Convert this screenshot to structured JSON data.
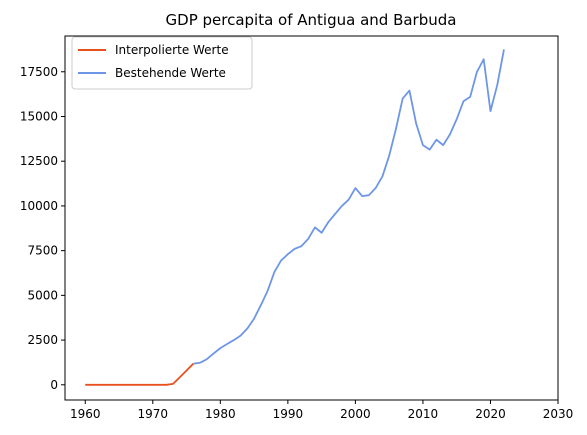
{
  "chart_data": {
    "type": "line",
    "title": "GDP percapita of Antigua and Barbuda",
    "xlabel": "",
    "ylabel": "",
    "xlim": [
      1957,
      2030
    ],
    "ylim": [
      -850,
      19500
    ],
    "xticks": [
      1960,
      1970,
      1980,
      1990,
      2000,
      2010,
      2020,
      2030
    ],
    "yticks": [
      0,
      2500,
      5000,
      7500,
      10000,
      12500,
      15000,
      17500
    ],
    "legend_position": "top-left",
    "grid": false,
    "series": [
      {
        "name": "Interpolierte Werte",
        "color": "#e8501e",
        "points": [
          [
            1960,
            0
          ],
          [
            1961,
            0
          ],
          [
            1962,
            0
          ],
          [
            1963,
            0
          ],
          [
            1964,
            0
          ],
          [
            1965,
            0
          ],
          [
            1966,
            0
          ],
          [
            1967,
            0
          ],
          [
            1968,
            0
          ],
          [
            1969,
            0
          ],
          [
            1970,
            0
          ],
          [
            1971,
            0
          ],
          [
            1972,
            0
          ],
          [
            1973,
            50
          ],
          [
            1974,
            420
          ],
          [
            1975,
            800
          ],
          [
            1976,
            1180
          ]
        ]
      },
      {
        "name": "Bestehende Werte",
        "color": "#6e96e6",
        "points": [
          [
            1977,
            1230
          ],
          [
            1978,
            1430
          ],
          [
            1979,
            1750
          ],
          [
            1980,
            2050
          ],
          [
            1981,
            2280
          ],
          [
            1982,
            2500
          ],
          [
            1983,
            2750
          ],
          [
            1984,
            3150
          ],
          [
            1985,
            3700
          ],
          [
            1986,
            4450
          ],
          [
            1987,
            5250
          ],
          [
            1988,
            6300
          ],
          [
            1989,
            6950
          ],
          [
            1990,
            7300
          ],
          [
            1991,
            7600
          ],
          [
            1992,
            7750
          ],
          [
            1993,
            8150
          ],
          [
            1994,
            8800
          ],
          [
            1995,
            8500
          ],
          [
            1996,
            9100
          ],
          [
            1997,
            9550
          ],
          [
            1998,
            10000
          ],
          [
            1999,
            10350
          ],
          [
            2000,
            11000
          ],
          [
            2001,
            10550
          ],
          [
            2002,
            10600
          ],
          [
            2003,
            11000
          ],
          [
            2004,
            11650
          ],
          [
            2005,
            12800
          ],
          [
            2006,
            14300
          ],
          [
            2007,
            16000
          ],
          [
            2008,
            16450
          ],
          [
            2009,
            14600
          ],
          [
            2010,
            13400
          ],
          [
            2011,
            13150
          ],
          [
            2012,
            13700
          ],
          [
            2013,
            13400
          ],
          [
            2014,
            14000
          ],
          [
            2015,
            14850
          ],
          [
            2016,
            15850
          ],
          [
            2017,
            16100
          ],
          [
            2018,
            17500
          ],
          [
            2019,
            18200
          ],
          [
            2020,
            15300
          ],
          [
            2021,
            16750
          ],
          [
            2022,
            18750
          ]
        ]
      }
    ]
  }
}
